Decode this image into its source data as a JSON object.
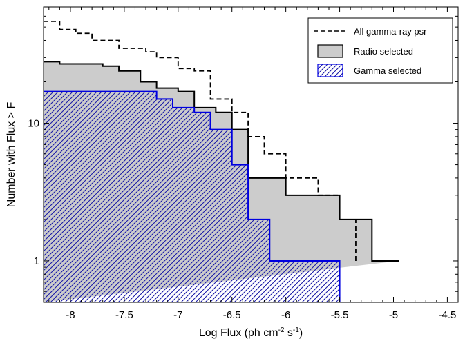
{
  "chart_data": {
    "type": "step-histogram",
    "title": "",
    "log_y": true,
    "xlim": [
      -8.25,
      -4.4
    ],
    "ylim": [
      0.5,
      70
    ],
    "x_ticks": [
      -8,
      -7.5,
      -7,
      -6.5,
      -6,
      -5.5,
      -5,
      -4.5
    ],
    "x_tick_labels": [
      "-8",
      "-7.5",
      "-7",
      "-6.5",
      "-6",
      "-5.5",
      "-5",
      "-4.5"
    ],
    "y_ticks": [
      1,
      10
    ],
    "y_tick_labels": [
      "1",
      "10"
    ],
    "xlabel": {
      "prefix": "Log Flux  (ph cm",
      "exp1": "-2",
      "middle": " s",
      "exp2": "-1",
      "suffix": ")"
    },
    "ylabel": "Number with Flux > F",
    "legend_position": "top-right",
    "series": [
      {
        "name": "All gamma-ray psr",
        "style": "dashed-step",
        "color": "#000000",
        "edges": [
          -8.25,
          -8.1,
          -7.95,
          -7.8,
          -7.55,
          -7.3,
          -7.2,
          -7.0,
          -6.85,
          -6.7,
          -6.5,
          -6.35,
          -6.2,
          -6.0,
          -5.85,
          -5.7,
          -5.5,
          -5.35
        ],
        "values": [
          55,
          48,
          45,
          40,
          35,
          33,
          30,
          25,
          24,
          15,
          12,
          8,
          6,
          4,
          4,
          3,
          2,
          1
        ]
      },
      {
        "name": "Radio selected",
        "style": "filled-step",
        "color": "#000000",
        "fill": "#cccccc",
        "edges": [
          -8.25,
          -8.1,
          -7.85,
          -7.7,
          -7.55,
          -7.35,
          -7.2,
          -7.0,
          -6.85,
          -6.65,
          -6.5,
          -6.35,
          -6.15,
          -6.0,
          -5.7,
          -5.5,
          -5.2,
          -4.95
        ],
        "values": [
          28,
          27,
          27,
          26,
          24,
          20,
          18,
          17,
          13,
          12,
          9,
          4,
          4,
          3,
          3,
          2,
          1,
          1
        ]
      },
      {
        "name": "Gamma selected",
        "style": "hatched-step",
        "color": "#0000e0",
        "edges": [
          -8.25,
          -7.8,
          -7.45,
          -7.2,
          -7.05,
          -6.85,
          -6.7,
          -6.5,
          -6.35,
          -6.15,
          -5.9,
          -5.5,
          -4.4
        ],
        "values": [
          17,
          17,
          17,
          15,
          13,
          12,
          9,
          5,
          2,
          1,
          1,
          0.5
        ]
      }
    ]
  }
}
